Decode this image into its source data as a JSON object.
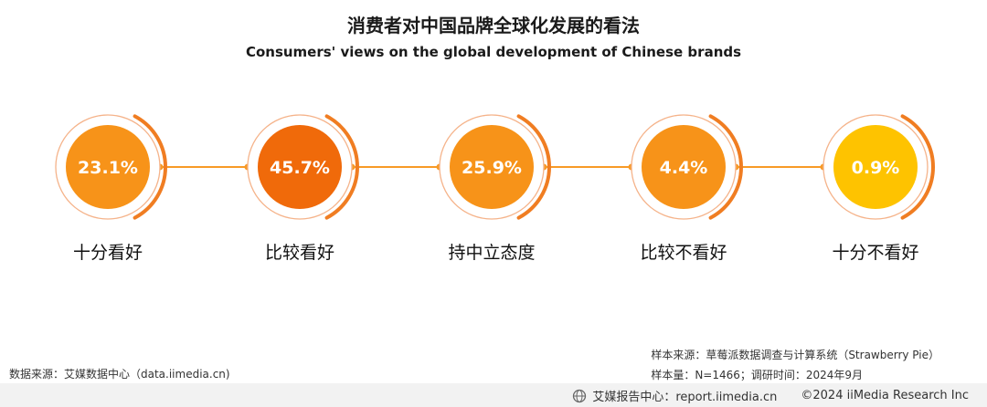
{
  "title": "消费者对中国品牌全球化发展的看法",
  "subtitle": "Consumers' views on the global development of Chinese brands",
  "chart_data": {
    "type": "bubble-percentage",
    "categories": [
      "十分看好",
      "比较看好",
      "持中立态度",
      "比较不看好",
      "十分不看好"
    ],
    "values": [
      23.1,
      45.7,
      25.9,
      4.4,
      0.9
    ],
    "labels": [
      "23.1%",
      "45.7%",
      "25.9%",
      "4.4%",
      "0.9%"
    ],
    "unit": "%"
  },
  "colors": {
    "main_orange": "#f79319",
    "highlight_orange": "#f06a0a",
    "yellow": "#fec300",
    "ring": "#f5b38a",
    "arc": "#f07d22",
    "connector": "#f79a26"
  },
  "footer": {
    "source": "数据来源：艾媒数据中心（data.iimedia.cn)",
    "sample_source": "样本来源：草莓派数据调查与计算系统（Strawberry Pie）",
    "sample_size": "样本量：N=1466；调研时间：2024年9月",
    "brand": "艾媒报告中心：report.iimedia.cn",
    "copyright": "©2024  iiMedia Research Inc"
  }
}
